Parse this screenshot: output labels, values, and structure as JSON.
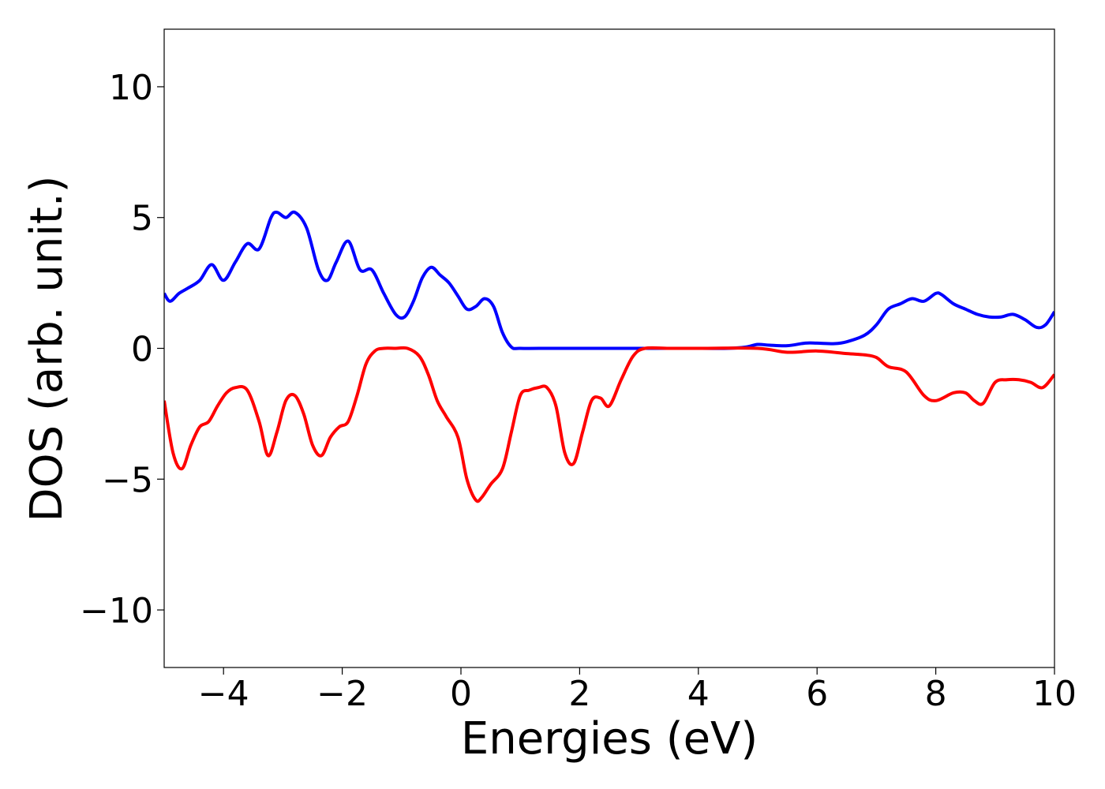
{
  "chart_data": {
    "type": "line",
    "title": "",
    "xlabel": "Energies (eV)",
    "ylabel": "DOS (arb. unit.)",
    "xlim": [
      -5,
      10
    ],
    "ylim": [
      -12.2,
      12.2
    ],
    "xticks": [
      -4,
      -2,
      0,
      2,
      4,
      6,
      8,
      10
    ],
    "xtick_labels": [
      "−4",
      "−2",
      "0",
      "2",
      "4",
      "6",
      "8",
      "10"
    ],
    "yticks": [
      -10,
      -5,
      0,
      5,
      10
    ],
    "ytick_labels": [
      "−10",
      "−5",
      "0",
      "5",
      "10"
    ],
    "grid": false,
    "legend": "none",
    "series": [
      {
        "color": "#0000ff",
        "x": [
          -5.0,
          -4.9,
          -4.75,
          -4.6,
          -4.4,
          -4.2,
          -4.0,
          -3.8,
          -3.6,
          -3.4,
          -3.2,
          -3.1,
          -2.95,
          -2.8,
          -2.6,
          -2.4,
          -2.25,
          -2.1,
          -1.9,
          -1.7,
          -1.5,
          -1.3,
          -1.1,
          -0.95,
          -0.8,
          -0.65,
          -0.5,
          -0.35,
          -0.2,
          -0.05,
          0.1,
          0.25,
          0.4,
          0.55,
          0.7,
          0.85,
          1.0,
          1.5,
          2.0,
          3.0,
          4.0,
          4.5,
          4.8,
          5.0,
          5.2,
          5.5,
          5.8,
          6.0,
          6.3,
          6.5,
          6.8,
          7.0,
          7.2,
          7.4,
          7.6,
          7.8,
          8.0,
          8.1,
          8.3,
          8.5,
          8.7,
          8.9,
          9.1,
          9.3,
          9.5,
          9.7,
          9.85,
          10.0
        ],
        "y": [
          2.1,
          1.8,
          2.1,
          2.3,
          2.6,
          3.2,
          2.6,
          3.3,
          4.0,
          3.8,
          5.0,
          5.2,
          5.0,
          5.2,
          4.6,
          3.0,
          2.6,
          3.3,
          4.1,
          3.0,
          3.0,
          2.1,
          1.3,
          1.2,
          1.8,
          2.7,
          3.1,
          2.8,
          2.5,
          2.0,
          1.5,
          1.6,
          1.9,
          1.6,
          0.6,
          0.05,
          0.0,
          0.0,
          0.0,
          0.0,
          0.0,
          0.0,
          0.05,
          0.15,
          0.12,
          0.1,
          0.2,
          0.2,
          0.18,
          0.25,
          0.5,
          0.9,
          1.5,
          1.7,
          1.9,
          1.8,
          2.1,
          2.05,
          1.7,
          1.5,
          1.3,
          1.2,
          1.2,
          1.3,
          1.1,
          0.8,
          0.9,
          1.4
        ]
      },
      {
        "color": "#ff0000",
        "x": [
          -5.0,
          -4.85,
          -4.7,
          -4.55,
          -4.4,
          -4.25,
          -4.1,
          -3.95,
          -3.8,
          -3.6,
          -3.4,
          -3.25,
          -3.1,
          -2.95,
          -2.8,
          -2.65,
          -2.5,
          -2.35,
          -2.2,
          -2.05,
          -1.9,
          -1.75,
          -1.6,
          -1.45,
          -1.3,
          -1.1,
          -0.9,
          -0.7,
          -0.55,
          -0.4,
          -0.25,
          -0.05,
          0.1,
          0.25,
          0.35,
          0.5,
          0.7,
          0.85,
          1.0,
          1.15,
          1.3,
          1.45,
          1.6,
          1.75,
          1.9,
          2.05,
          2.2,
          2.35,
          2.5,
          2.7,
          2.9,
          3.1,
          3.5,
          4.0,
          5.0,
          5.5,
          6.0,
          6.5,
          6.8,
          7.0,
          7.2,
          7.5,
          7.8,
          8.0,
          8.3,
          8.5,
          8.65,
          8.8,
          9.0,
          9.2,
          9.4,
          9.6,
          9.8,
          10.0
        ],
        "y": [
          -2.0,
          -4.0,
          -4.6,
          -3.7,
          -3.0,
          -2.8,
          -2.2,
          -1.7,
          -1.5,
          -1.6,
          -2.8,
          -4.1,
          -3.2,
          -2.0,
          -1.8,
          -2.5,
          -3.7,
          -4.1,
          -3.4,
          -3.0,
          -2.8,
          -1.8,
          -0.6,
          -0.1,
          0.0,
          0.0,
          0.0,
          -0.3,
          -1.0,
          -2.0,
          -2.6,
          -3.4,
          -5.0,
          -5.8,
          -5.7,
          -5.2,
          -4.6,
          -3.2,
          -1.8,
          -1.6,
          -1.5,
          -1.5,
          -2.2,
          -4.0,
          -4.4,
          -3.2,
          -2.0,
          -1.9,
          -2.2,
          -1.2,
          -0.3,
          0.0,
          0.0,
          0.0,
          0.0,
          -0.15,
          -0.1,
          -0.2,
          -0.25,
          -0.35,
          -0.7,
          -0.9,
          -1.8,
          -2.0,
          -1.7,
          -1.7,
          -2.0,
          -2.1,
          -1.3,
          -1.2,
          -1.2,
          -1.3,
          -1.5,
          -1.0
        ]
      }
    ]
  }
}
